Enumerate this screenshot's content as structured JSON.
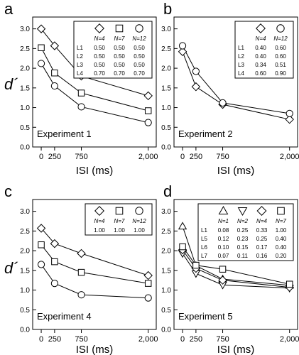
{
  "figure": {
    "y_axis_label": "d´",
    "x_axis_label": "ISI (ms)"
  },
  "chart_data": [
    {
      "type": "line",
      "panel_letter": "a",
      "title": "Experiment 1",
      "xlabel": "ISI (ms)",
      "ylabel": "d´",
      "x": [
        0,
        250,
        750,
        2000
      ],
      "x_tick_labels": [
        "0",
        "250",
        "750",
        "2,000"
      ],
      "y_ticks": [
        0.0,
        0.5,
        1.0,
        1.5,
        2.0,
        2.5,
        3.0
      ],
      "y_tick_labels": [
        "0.0",
        "0.5",
        "1.0",
        "1.5",
        "2.0",
        "2.5",
        "3.0"
      ],
      "ylim": [
        0,
        3.3
      ],
      "series": [
        {
          "name": "N=4",
          "marker": "diamond",
          "values": [
            3.0,
            2.57,
            1.8,
            1.3
          ]
        },
        {
          "name": "N=7",
          "marker": "square",
          "values": [
            2.52,
            1.88,
            1.37,
            0.92
          ]
        },
        {
          "name": "N=12",
          "marker": "circle",
          "values": [
            2.12,
            1.55,
            1.02,
            0.62
          ]
        }
      ],
      "legend": {
        "position": "top-right",
        "row_labels": [
          "L1",
          "L2",
          "L3",
          "L4"
        ],
        "rows": [
          [
            "0.50",
            "0.50",
            "0.50"
          ],
          [
            "0.50",
            "0.50",
            "0.50"
          ],
          [
            "0.50",
            "0.50",
            "0.50"
          ],
          [
            "0.70",
            "0.70",
            "0.70"
          ]
        ]
      }
    },
    {
      "type": "line",
      "panel_letter": "b",
      "title": "Experiment 2",
      "xlabel": "ISI (ms)",
      "ylabel": "d´",
      "x": [
        0,
        250,
        750,
        2000
      ],
      "x_tick_labels": [
        "0",
        "250",
        "750",
        "2,000"
      ],
      "y_ticks": [
        0.0,
        0.5,
        1.0,
        1.5,
        2.0,
        2.5,
        3.0
      ],
      "y_tick_labels": [
        "0.0",
        "0.5",
        "1.0",
        "1.5",
        "2.0",
        "2.5",
        "3.0"
      ],
      "ylim": [
        0,
        3.3
      ],
      "series": [
        {
          "name": "N=4",
          "marker": "diamond",
          "values": [
            2.42,
            1.53,
            1.08,
            0.7
          ]
        },
        {
          "name": "N=12",
          "marker": "circle",
          "values": [
            2.57,
            1.92,
            1.12,
            0.85
          ]
        }
      ],
      "legend": {
        "position": "top-right",
        "row_labels": [
          "L1",
          "L2",
          "L3",
          "L4"
        ],
        "rows": [
          [
            "0.40",
            "0.60"
          ],
          [
            "0.40",
            "0.60"
          ],
          [
            "0.34",
            "0.51"
          ],
          [
            "0.60",
            "0.90"
          ]
        ]
      }
    },
    {
      "type": "line",
      "panel_letter": "c",
      "title": "Experiment 4",
      "xlabel": "ISI (ms)",
      "ylabel": "d´",
      "x": [
        0,
        250,
        750,
        2000
      ],
      "x_tick_labels": [
        "0",
        "250",
        "750",
        "2,000"
      ],
      "y_ticks": [
        0.0,
        0.5,
        1.0,
        1.5,
        2.0,
        2.5,
        3.0
      ],
      "y_tick_labels": [
        "0.0",
        "0.5",
        "1.0",
        "1.5",
        "2.0",
        "2.5",
        "3.0"
      ],
      "ylim": [
        0,
        3.3
      ],
      "series": [
        {
          "name": "N=4",
          "marker": "diamond",
          "values": [
            2.57,
            2.18,
            1.93,
            1.37
          ]
        },
        {
          "name": "N=7",
          "marker": "square",
          "values": [
            2.15,
            1.72,
            1.45,
            1.17
          ]
        },
        {
          "name": "N=12",
          "marker": "circle",
          "values": [
            1.65,
            1.17,
            0.88,
            0.8
          ]
        }
      ],
      "legend": {
        "position": "top-right",
        "row_labels": [
          ""
        ],
        "rows": [
          [
            "1.00",
            "1.00",
            "1.00"
          ]
        ]
      }
    },
    {
      "type": "line",
      "panel_letter": "d",
      "title": "Experiment 5",
      "xlabel": "ISI (ms)",
      "ylabel": "d´",
      "x": [
        0,
        250,
        750,
        2000
      ],
      "x_tick_labels": [
        "0",
        "250",
        "750",
        "2,000"
      ],
      "y_ticks": [
        0.0,
        0.5,
        1.0,
        1.5,
        2.0,
        2.5,
        3.0
      ],
      "y_tick_labels": [
        "0.0",
        "0.5",
        "1.0",
        "1.5",
        "2.0",
        "2.5",
        "3.0"
      ],
      "ylim": [
        0,
        3.3
      ],
      "series": [
        {
          "name": "N=1",
          "marker": "triangle-up",
          "values": [
            2.62,
            1.62,
            1.28,
            1.12
          ]
        },
        {
          "name": "N=2",
          "marker": "triangle-down",
          "values": [
            1.93,
            1.42,
            1.13,
            1.05
          ]
        },
        {
          "name": "N=4",
          "marker": "diamond",
          "values": [
            2.02,
            1.55,
            1.25,
            1.07
          ]
        },
        {
          "name": "N=7",
          "marker": "square",
          "values": [
            2.1,
            1.63,
            1.53,
            1.15
          ]
        }
      ],
      "legend": {
        "position": "top-right",
        "row_labels": [
          "L1",
          "L5",
          "L6",
          "L7"
        ],
        "rows": [
          [
            "0.08",
            "0.25",
            "0.33",
            "1.00"
          ],
          [
            "0.12",
            "0.23",
            "0.25",
            "0.40"
          ],
          [
            "0.10",
            "0.15",
            "0.17",
            "0.40"
          ],
          [
            "0.07",
            "0.11",
            "0.16",
            "0.20"
          ]
        ]
      }
    }
  ]
}
